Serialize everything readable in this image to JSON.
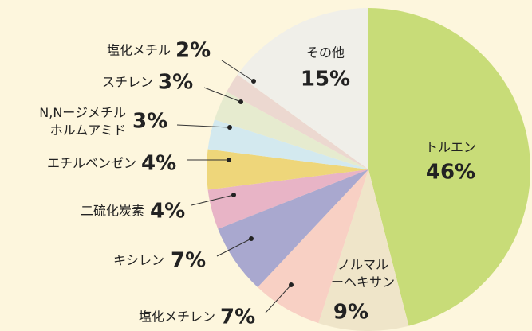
{
  "chart_data": {
    "type": "pie",
    "categories": [
      "トルエン",
      "ノルマル\nーヘキサン",
      "塩化メチレン",
      "キシレン",
      "二硫化炭素",
      "エチルベンゼン",
      "N,Nージメチル\nホルムアミド",
      "スチレン",
      "塩化メチル",
      "その他"
    ],
    "values": [
      46,
      9,
      7,
      7,
      4,
      4,
      3,
      3,
      2,
      15
    ],
    "value_labels": [
      "46%",
      "9%",
      "7%",
      "7%",
      "4%",
      "4%",
      "3%",
      "3%",
      "2%",
      "15%"
    ],
    "colors": [
      "#c8dc78",
      "#efe5c9",
      "#f8d0c4",
      "#a9a8cf",
      "#e8b4c6",
      "#eed67a",
      "#d3e9ef",
      "#e6ebcf",
      "#ecd8d0",
      "#f0efe9"
    ]
  }
}
